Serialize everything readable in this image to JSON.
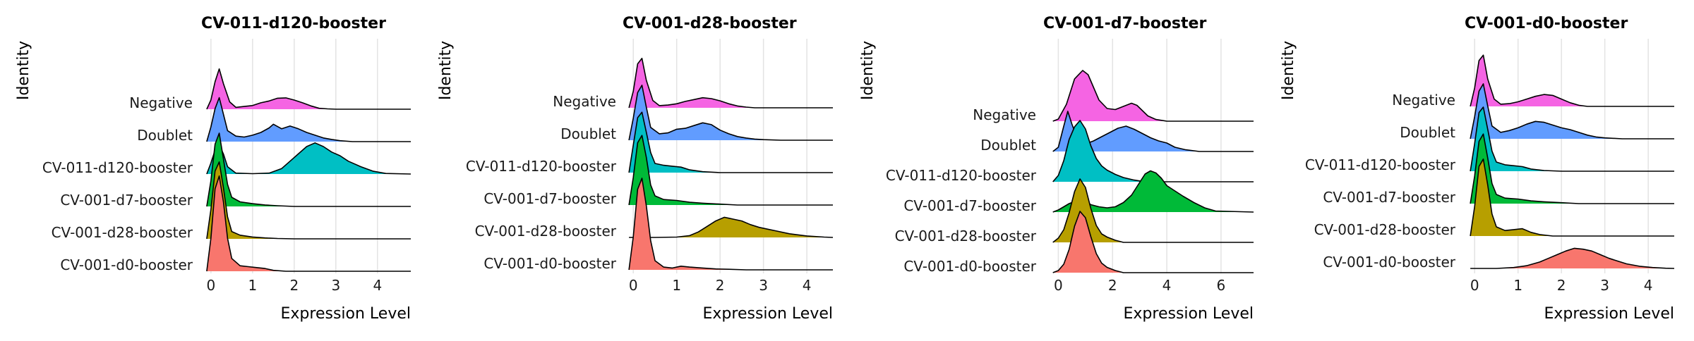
{
  "chart_data": [
    {
      "type": "ridgeline",
      "title": "CV-011-d120-booster",
      "xlabel": "Expression Level",
      "ylabel": "Identity",
      "xlim": [
        -0.15,
        4.8
      ],
      "xticks": [
        0,
        1,
        2,
        3,
        4
      ],
      "categories": [
        "Negative",
        "Doublet",
        "CV-011-d120-booster",
        "CV-001-d7-booster",
        "CV-001-d28-booster",
        "CV-001-d0-booster"
      ],
      "series": [
        {
          "name": "Negative",
          "color": "#F564E3",
          "x": [
            -0.1,
            0.0,
            0.1,
            0.2,
            0.3,
            0.45,
            0.6,
            0.8,
            1.0,
            1.2,
            1.4,
            1.6,
            1.8,
            2.0,
            2.2,
            2.4,
            2.6,
            2.8,
            3.0,
            4.8
          ],
          "density": [
            0,
            0.5,
            1.5,
            2.2,
            1.4,
            0.4,
            0.1,
            0.15,
            0.2,
            0.35,
            0.45,
            0.6,
            0.62,
            0.5,
            0.35,
            0.18,
            0.05,
            0.02,
            0,
            0
          ]
        },
        {
          "name": "Doublet",
          "color": "#619CFF",
          "x": [
            -0.1,
            0.0,
            0.1,
            0.2,
            0.3,
            0.4,
            0.6,
            0.8,
            1.0,
            1.2,
            1.4,
            1.5,
            1.7,
            1.9,
            2.1,
            2.3,
            2.5,
            2.7,
            2.9,
            3.1,
            3.4,
            4.8
          ],
          "density": [
            0,
            0.8,
            1.8,
            2.4,
            1.5,
            0.6,
            0.3,
            0.25,
            0.35,
            0.5,
            0.75,
            0.95,
            0.7,
            0.85,
            0.7,
            0.5,
            0.35,
            0.2,
            0.12,
            0.05,
            0,
            0
          ]
        },
        {
          "name": "CV-011-d120-booster",
          "color": "#00BFC4",
          "x": [
            -0.1,
            0.0,
            0.1,
            0.2,
            0.3,
            0.4,
            0.6,
            1.0,
            1.4,
            1.7,
            1.9,
            2.1,
            2.3,
            2.5,
            2.7,
            2.9,
            3.1,
            3.3,
            3.6,
            3.9,
            4.2,
            4.8
          ],
          "density": [
            0,
            0.6,
            1.3,
            1.6,
            1.1,
            0.4,
            0.05,
            0.02,
            0.05,
            0.3,
            0.7,
            1.1,
            1.5,
            1.7,
            1.5,
            1.2,
            1.0,
            0.7,
            0.4,
            0.15,
            0.03,
            0
          ]
        },
        {
          "name": "CV-001-d7-booster",
          "color": "#00BA38",
          "x": [
            -0.1,
            0.0,
            0.1,
            0.2,
            0.3,
            0.4,
            0.5,
            0.7,
            1.0,
            1.3,
            1.6,
            2.0,
            4.8
          ],
          "density": [
            0,
            1.4,
            3.4,
            4.0,
            2.6,
            1.2,
            0.5,
            0.25,
            0.15,
            0.08,
            0.04,
            0,
            0
          ]
        },
        {
          "name": "CV-001-d28-booster",
          "color": "#B79F00",
          "x": [
            -0.1,
            0.0,
            0.1,
            0.2,
            0.3,
            0.4,
            0.5,
            0.7,
            1.0,
            1.3,
            1.6,
            2.0,
            4.8
          ],
          "density": [
            0,
            1.6,
            3.7,
            4.2,
            2.8,
            1.2,
            0.4,
            0.2,
            0.1,
            0.05,
            0.02,
            0,
            0
          ]
        },
        {
          "name": "CV-001-d0-booster",
          "color": "#F8766D",
          "x": [
            -0.1,
            0.0,
            0.1,
            0.2,
            0.3,
            0.4,
            0.5,
            0.7,
            0.9,
            1.1,
            1.3,
            1.5,
            1.8,
            4.8
          ],
          "density": [
            0,
            1.8,
            4.5,
            5.2,
            3.8,
            1.8,
            0.7,
            0.3,
            0.25,
            0.2,
            0.15,
            0.05,
            0,
            0
          ]
        }
      ]
    },
    {
      "type": "ridgeline",
      "title": "CV-001-d28-booster",
      "xlabel": "Expression Level",
      "ylabel": "Identity",
      "xlim": [
        -0.15,
        4.6
      ],
      "xticks": [
        0,
        1,
        2,
        3,
        4
      ],
      "categories": [
        "Negative",
        "Doublet",
        "CV-011-d120-booster",
        "CV-001-d7-booster",
        "CV-001-d28-booster",
        "CV-001-d0-booster"
      ],
      "series": [
        {
          "name": "Negative",
          "color": "#F564E3",
          "x": [
            -0.1,
            0.0,
            0.1,
            0.2,
            0.3,
            0.45,
            0.6,
            0.8,
            1.0,
            1.2,
            1.4,
            1.6,
            1.8,
            2.0,
            2.2,
            2.4,
            2.6,
            2.8,
            4.6
          ],
          "density": [
            0,
            0.9,
            2.4,
            2.7,
            1.5,
            0.4,
            0.12,
            0.15,
            0.22,
            0.35,
            0.45,
            0.55,
            0.5,
            0.38,
            0.22,
            0.1,
            0.04,
            0,
            0
          ]
        },
        {
          "name": "Doublet",
          "color": "#619CFF",
          "x": [
            -0.1,
            0.0,
            0.1,
            0.2,
            0.3,
            0.4,
            0.6,
            0.8,
            1.0,
            1.2,
            1.4,
            1.6,
            1.8,
            2.0,
            2.2,
            2.4,
            2.6,
            2.8,
            3.0,
            3.4,
            4.6
          ],
          "density": [
            0,
            1.2,
            2.6,
            3.0,
            1.8,
            0.7,
            0.35,
            0.4,
            0.6,
            0.65,
            0.8,
            0.95,
            0.85,
            0.55,
            0.35,
            0.2,
            0.12,
            0.06,
            0.03,
            0,
            0
          ]
        },
        {
          "name": "CV-011-d120-booster",
          "color": "#00BFC4",
          "x": [
            -0.1,
            0.0,
            0.1,
            0.2,
            0.3,
            0.4,
            0.5,
            0.7,
            0.9,
            1.1,
            1.3,
            1.6,
            2.0,
            4.6
          ],
          "density": [
            0,
            1.5,
            3.0,
            3.3,
            2.2,
            1.1,
            0.5,
            0.4,
            0.35,
            0.3,
            0.15,
            0.05,
            0,
            0
          ]
        },
        {
          "name": "CV-001-d7-booster",
          "color": "#00BA38",
          "x": [
            -0.1,
            0.0,
            0.1,
            0.2,
            0.3,
            0.4,
            0.5,
            0.7,
            1.0,
            1.3,
            1.6,
            2.0,
            2.4,
            4.6
          ],
          "density": [
            0,
            1.5,
            3.4,
            3.8,
            2.6,
            1.1,
            0.5,
            0.3,
            0.25,
            0.15,
            0.1,
            0.05,
            0,
            0
          ]
        },
        {
          "name": "CV-001-d28-booster",
          "color": "#B79F00",
          "x": [
            -0.1,
            0.1,
            0.5,
            1.0,
            1.3,
            1.5,
            1.7,
            1.9,
            2.1,
            2.2,
            2.3,
            2.5,
            2.7,
            2.9,
            3.1,
            3.3,
            3.6,
            4.0,
            4.4,
            4.6
          ],
          "density": [
            0,
            0,
            0,
            0.02,
            0.1,
            0.3,
            0.6,
            0.9,
            1.1,
            1.05,
            1.0,
            0.9,
            0.7,
            0.55,
            0.45,
            0.35,
            0.2,
            0.08,
            0.02,
            0
          ]
        },
        {
          "name": "CV-001-d0-booster",
          "color": "#F8766D",
          "x": [
            -0.1,
            0.0,
            0.1,
            0.2,
            0.3,
            0.4,
            0.5,
            0.7,
            0.9,
            1.1,
            1.3,
            1.6,
            1.9,
            2.2,
            2.6,
            4.6
          ],
          "density": [
            0,
            1.8,
            4.4,
            5.0,
            3.5,
            1.6,
            0.5,
            0.15,
            0.1,
            0.2,
            0.15,
            0.1,
            0.05,
            0.03,
            0,
            0
          ]
        }
      ]
    },
    {
      "type": "ridgeline",
      "title": "CV-001-d7-booster",
      "xlabel": "Expression Level",
      "ylabel": "Identity",
      "xlim": [
        -0.4,
        7.2
      ],
      "xticks": [
        0,
        2,
        4,
        6
      ],
      "categories": [
        "Negative",
        "Doublet",
        "CV-011-d120-booster",
        "CV-001-d7-booster",
        "CV-001-d28-booster",
        "CV-001-d0-booster"
      ],
      "series": [
        {
          "name": "Negative",
          "color": "#F564E3",
          "x": [
            -0.2,
            0.0,
            0.3,
            0.6,
            0.9,
            1.1,
            1.3,
            1.5,
            1.8,
            2.1,
            2.4,
            2.7,
            2.9,
            3.1,
            3.3,
            3.6,
            4.0,
            7.2
          ],
          "density": [
            0,
            0.1,
            0.8,
            2.0,
            2.4,
            2.2,
            1.6,
            1.0,
            0.6,
            0.55,
            0.7,
            0.85,
            0.75,
            0.5,
            0.25,
            0.08,
            0,
            0
          ]
        },
        {
          "name": "Doublet",
          "color": "#619CFF",
          "x": [
            -0.2,
            0.0,
            0.2,
            0.35,
            0.5,
            0.7,
            0.9,
            1.1,
            1.3,
            1.6,
            1.9,
            2.2,
            2.5,
            2.8,
            3.1,
            3.4,
            3.7,
            4.0,
            4.3,
            4.7,
            5.2,
            7.2
          ],
          "density": [
            0,
            0.2,
            1.2,
            1.9,
            1.3,
            0.6,
            0.4,
            0.4,
            0.5,
            0.7,
            0.9,
            1.1,
            1.2,
            1.05,
            0.85,
            0.65,
            0.5,
            0.4,
            0.2,
            0.08,
            0,
            0
          ]
        },
        {
          "name": "CV-011-d120-booster",
          "color": "#00BFC4",
          "x": [
            -0.2,
            0.0,
            0.2,
            0.4,
            0.6,
            0.8,
            1.0,
            1.2,
            1.4,
            1.6,
            1.8,
            2.1,
            2.4,
            2.8,
            3.2,
            7.2
          ],
          "density": [
            0,
            0.3,
            1.0,
            2.0,
            2.6,
            2.9,
            2.5,
            1.7,
            1.1,
            0.75,
            0.55,
            0.35,
            0.2,
            0.08,
            0,
            0
          ]
        },
        {
          "name": "CV-001-d7-booster",
          "color": "#00BA38",
          "x": [
            -0.2,
            0.0,
            0.2,
            0.4,
            0.6,
            0.8,
            1.0,
            1.2,
            1.5,
            1.8,
            2.1,
            2.4,
            2.7,
            3.0,
            3.2,
            3.4,
            3.6,
            3.8,
            4.0,
            4.3,
            4.6,
            5.0,
            5.4,
            5.8,
            7.2
          ],
          "density": [
            0,
            0.1,
            0.25,
            0.4,
            0.5,
            0.55,
            0.5,
            0.35,
            0.25,
            0.2,
            0.25,
            0.45,
            0.8,
            1.4,
            1.8,
            1.95,
            1.85,
            1.6,
            1.25,
            1.0,
            0.75,
            0.45,
            0.2,
            0.05,
            0
          ]
        },
        {
          "name": "CV-001-d28-booster",
          "color": "#B79F00",
          "x": [
            -0.2,
            0.0,
            0.2,
            0.4,
            0.6,
            0.8,
            1.0,
            1.2,
            1.4,
            1.6,
            1.8,
            2.1,
            2.4,
            7.2
          ],
          "density": [
            0,
            0.2,
            0.6,
            1.4,
            2.4,
            3.0,
            2.6,
            1.6,
            0.8,
            0.4,
            0.25,
            0.1,
            0,
            0
          ]
        },
        {
          "name": "CV-001-d0-booster",
          "color": "#F8766D",
          "x": [
            -0.2,
            0.0,
            0.2,
            0.4,
            0.6,
            0.8,
            1.0,
            1.2,
            1.4,
            1.6,
            1.8,
            2.1,
            2.4,
            7.2
          ],
          "density": [
            0,
            0.1,
            0.4,
            1.1,
            2.2,
            2.9,
            2.6,
            1.7,
            0.9,
            0.45,
            0.25,
            0.1,
            0,
            0
          ]
        }
      ]
    },
    {
      "type": "ridgeline",
      "title": "CV-001-d0-booster",
      "xlabel": "Expression Level",
      "ylabel": "Identity",
      "xlim": [
        -0.15,
        4.6
      ],
      "xticks": [
        0,
        1,
        2,
        3,
        4
      ],
      "categories": [
        "Negative",
        "Doublet",
        "CV-011-d120-booster",
        "CV-001-d7-booster",
        "CV-001-d28-booster",
        "CV-001-d0-booster"
      ],
      "series": [
        {
          "name": "Negative",
          "color": "#F564E3",
          "x": [
            -0.1,
            0.0,
            0.1,
            0.2,
            0.3,
            0.45,
            0.6,
            0.8,
            1.0,
            1.2,
            1.4,
            1.6,
            1.8,
            2.0,
            2.2,
            2.4,
            2.6,
            4.6
          ],
          "density": [
            0,
            1.0,
            2.5,
            2.8,
            1.5,
            0.4,
            0.12,
            0.15,
            0.25,
            0.4,
            0.55,
            0.65,
            0.6,
            0.4,
            0.2,
            0.06,
            0,
            0
          ]
        },
        {
          "name": "Doublet",
          "color": "#619CFF",
          "x": [
            -0.1,
            0.0,
            0.1,
            0.2,
            0.3,
            0.4,
            0.6,
            0.8,
            1.0,
            1.2,
            1.4,
            1.6,
            1.8,
            2.0,
            2.2,
            2.4,
            2.6,
            2.8,
            3.0,
            3.4,
            4.6
          ],
          "density": [
            0,
            1.2,
            2.6,
            3.0,
            1.8,
            0.7,
            0.35,
            0.45,
            0.6,
            0.8,
            0.95,
            0.9,
            0.75,
            0.6,
            0.5,
            0.35,
            0.2,
            0.1,
            0.05,
            0,
            0
          ]
        },
        {
          "name": "CV-011-d120-booster",
          "color": "#00BFC4",
          "x": [
            -0.1,
            0.0,
            0.1,
            0.2,
            0.3,
            0.4,
            0.5,
            0.7,
            0.9,
            1.1,
            1.3,
            1.6,
            2.0,
            4.6
          ],
          "density": [
            0,
            1.5,
            3.2,
            3.5,
            2.3,
            1.1,
            0.5,
            0.35,
            0.3,
            0.25,
            0.12,
            0.04,
            0,
            0
          ]
        },
        {
          "name": "CV-001-d7-booster",
          "color": "#00BA38",
          "x": [
            -0.1,
            0.0,
            0.1,
            0.2,
            0.3,
            0.4,
            0.5,
            0.7,
            1.0,
            1.3,
            1.6,
            2.0,
            2.4,
            4.6
          ],
          "density": [
            0,
            1.5,
            3.4,
            3.8,
            2.5,
            1.1,
            0.5,
            0.3,
            0.25,
            0.15,
            0.1,
            0.05,
            0,
            0
          ]
        },
        {
          "name": "CV-001-d28-booster",
          "color": "#B79F00",
          "x": [
            -0.1,
            0.0,
            0.1,
            0.2,
            0.3,
            0.4,
            0.5,
            0.7,
            0.9,
            1.1,
            1.3,
            1.5,
            1.8,
            4.6
          ],
          "density": [
            0,
            1.6,
            3.8,
            4.2,
            2.8,
            1.2,
            0.5,
            0.3,
            0.35,
            0.4,
            0.2,
            0.08,
            0,
            0
          ]
        },
        {
          "name": "CV-001-d0-booster",
          "color": "#F8766D",
          "x": [
            -0.1,
            0.5,
            0.9,
            1.2,
            1.5,
            1.7,
            1.9,
            2.1,
            2.3,
            2.5,
            2.7,
            2.9,
            3.1,
            3.3,
            3.5,
            3.8,
            4.1,
            4.4,
            4.6
          ],
          "density": [
            0,
            0,
            0.05,
            0.15,
            0.35,
            0.55,
            0.75,
            0.95,
            1.1,
            1.05,
            0.95,
            0.75,
            0.55,
            0.4,
            0.25,
            0.12,
            0.05,
            0.01,
            0
          ]
        }
      ]
    }
  ]
}
